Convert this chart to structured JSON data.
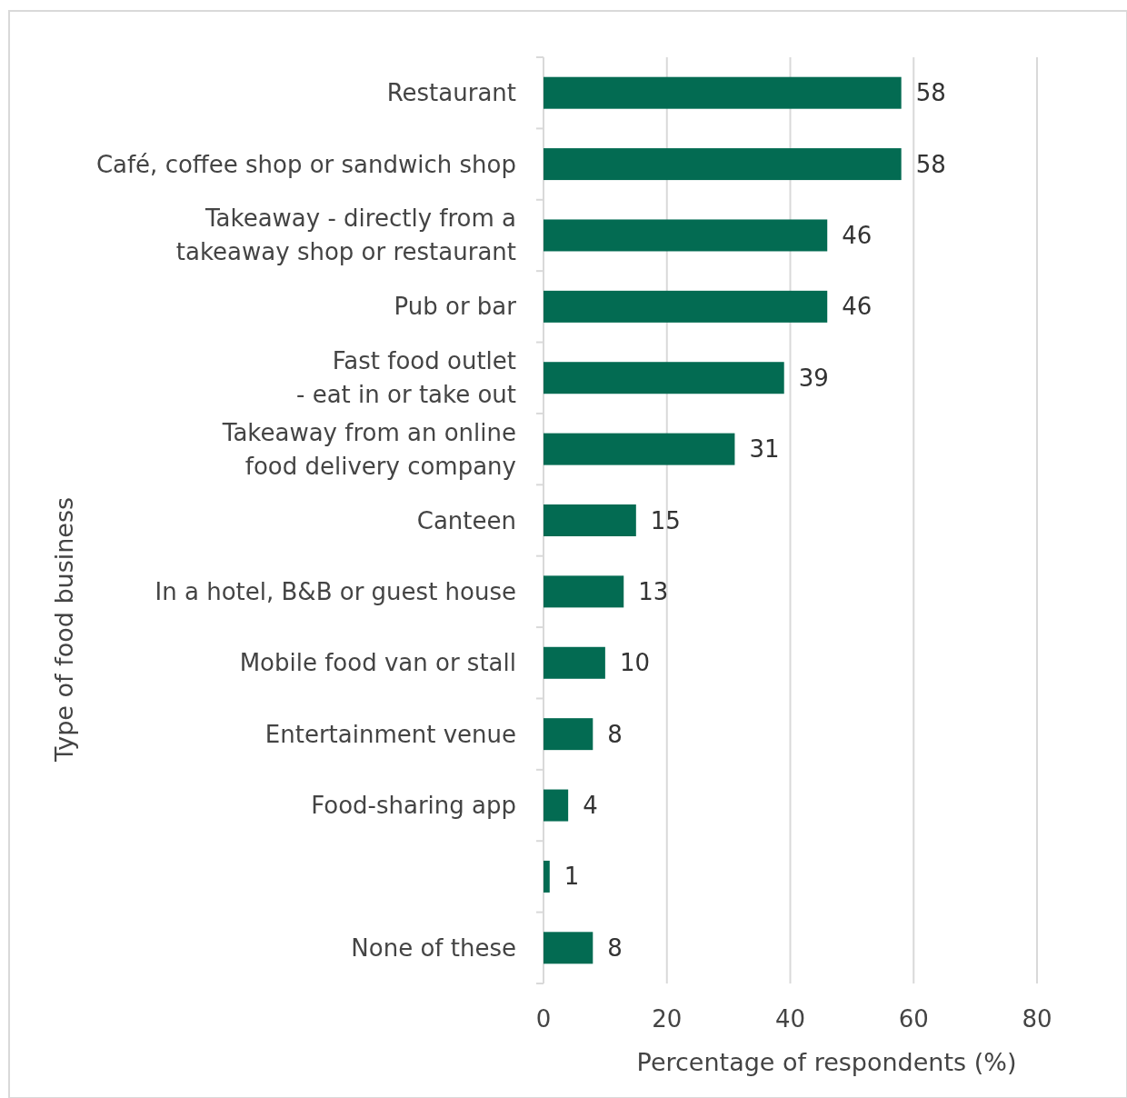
{
  "chart_data": {
    "type": "bar",
    "orientation": "horizontal",
    "xlabel": "Percentage of respondents (%)",
    "ylabel": "Type of food business",
    "categories": [
      "Restaurant",
      "Café, coffee shop or sandwich shop",
      "Takeaway - directly from a\ntakeaway shop or restaurant",
      "Pub or bar",
      "Fast food outlet\n- eat in or take out",
      "Takeaway from an online\nfood delivery company",
      "Canteen",
      "In a hotel, B&B or guest house",
      "Mobile food van or stall",
      "Entertainment venue",
      "Food-sharing app",
      null,
      "None of these"
    ],
    "values": [
      58,
      58,
      46,
      46,
      39,
      31,
      15,
      13,
      10,
      8,
      4,
      1,
      8
    ],
    "color": "#036b52",
    "xlim": [
      0,
      80
    ],
    "xticks": [
      0,
      20,
      40,
      60,
      80
    ],
    "grid": "x",
    "data_labels": true
  }
}
